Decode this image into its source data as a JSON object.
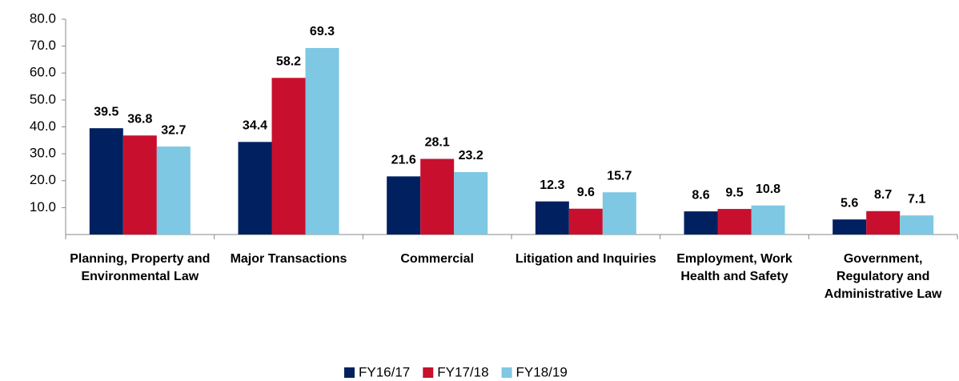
{
  "chart_data": {
    "type": "bar",
    "categories": [
      "Planning, Property and Environmental Law",
      "Major Transactions",
      "Commercial",
      "Litigation and Inquiries",
      "Employment, Work Health and Safety",
      "Government, Regulatory and Administrative Law"
    ],
    "series": [
      {
        "name": "FY16/17",
        "color": "#002060",
        "values": [
          39.5,
          34.4,
          21.6,
          12.3,
          8.6,
          5.6
        ]
      },
      {
        "name": "FY17/18",
        "color": "#c8102e",
        "values": [
          36.8,
          58.2,
          28.1,
          9.6,
          9.5,
          8.7
        ]
      },
      {
        "name": "FY18/19",
        "color": "#7ec8e3",
        "values": [
          32.7,
          69.3,
          23.2,
          15.7,
          10.8,
          7.1
        ]
      }
    ],
    "ylim": [
      0,
      80
    ],
    "yticks": [
      {
        "value": 10,
        "label": "10.0"
      },
      {
        "value": 20,
        "label": "20.0"
      },
      {
        "value": 30,
        "label": "30.0"
      },
      {
        "value": 40,
        "label": "40.0"
      },
      {
        "value": 50,
        "label": "50.0"
      },
      {
        "value": 60,
        "label": "60.0"
      },
      {
        "value": 70,
        "label": "70.0"
      },
      {
        "value": 80,
        "label": "80.0"
      }
    ],
    "grid": false,
    "legend": "bottom"
  }
}
